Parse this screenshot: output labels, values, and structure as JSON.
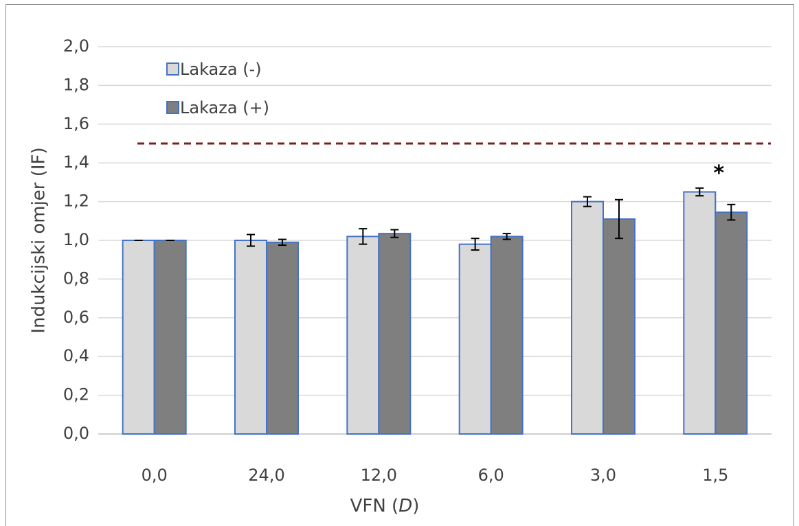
{
  "chart_data": {
    "type": "bar",
    "xlabel_prefix": "VFN (",
    "xlabel_italic": "D",
    "xlabel_suffix": ")",
    "ylabel": "Indukcijski omjer  (IF)",
    "categories": [
      "0,0",
      "24,0",
      "12,0",
      "6,0",
      "3,0",
      "1,5"
    ],
    "ylim": [
      0,
      2.0
    ],
    "yticks": [
      "0,0",
      "0,2",
      "0,4",
      "0,6",
      "0,8",
      "1,0",
      "1,2",
      "1,4",
      "1,6",
      "1,8",
      "2,0"
    ],
    "grid": true,
    "legend_placement": "top-left",
    "series": [
      {
        "name": "Lakaza (-)",
        "color": "#d9d9d9",
        "values": [
          1.0,
          1.0,
          1.02,
          0.98,
          1.2,
          1.25
        ],
        "errors": [
          0.0,
          0.03,
          0.04,
          0.03,
          0.025,
          0.02
        ]
      },
      {
        "name": "Lakaza (+)",
        "color": "#7f7f7f",
        "values": [
          1.0,
          0.99,
          1.035,
          1.02,
          1.11,
          1.145
        ],
        "errors": [
          0.0,
          0.015,
          0.02,
          0.015,
          0.1,
          0.04
        ]
      }
    ],
    "bar_edge_color": "#4472c4",
    "threshold": {
      "value": 1.5,
      "color": "#7b1f1f"
    },
    "annotations": [
      {
        "category_index": 5,
        "text": "*"
      }
    ]
  }
}
